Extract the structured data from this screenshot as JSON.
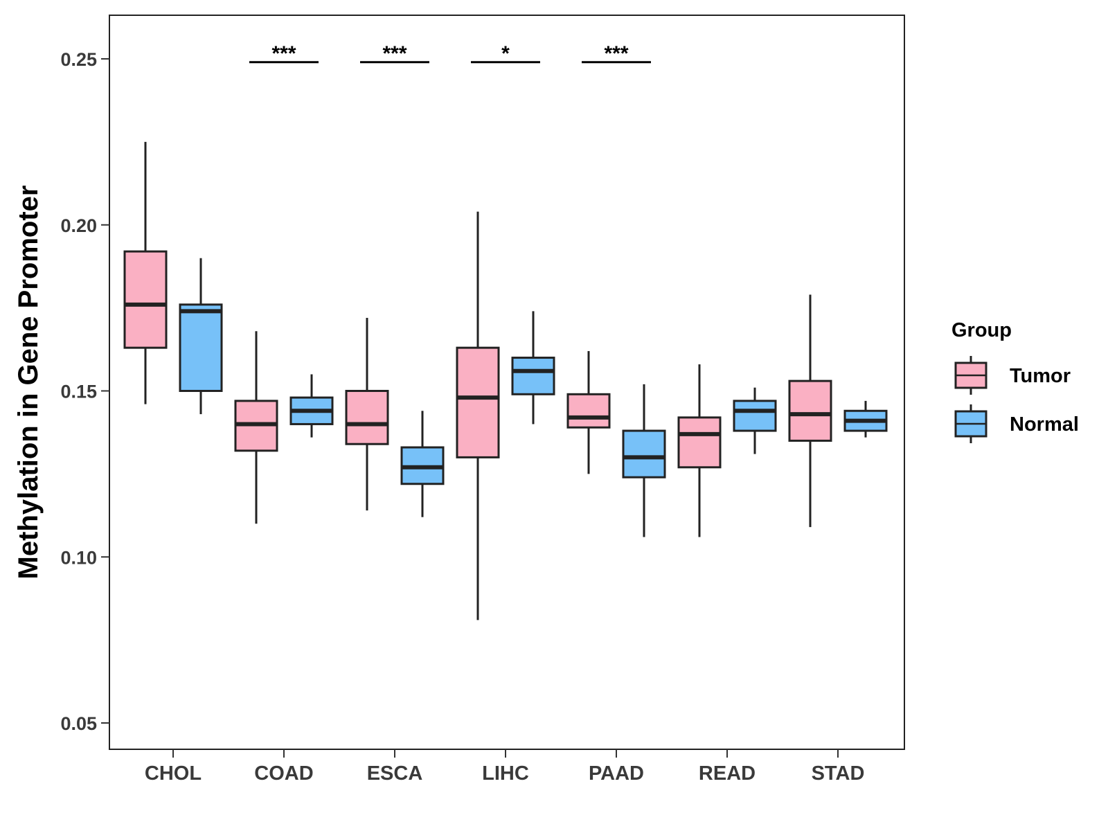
{
  "chart_data": {
    "type": "boxplot",
    "title": "",
    "xlabel": "",
    "ylabel": "Methylation in Gene Promoter",
    "ylim": [
      0.042,
      0.263
    ],
    "yticks": [
      0.05,
      0.1,
      0.15,
      0.2,
      0.25
    ],
    "ytick_labels": [
      "0.05",
      "0.10",
      "0.15",
      "0.20",
      "0.25"
    ],
    "categories": [
      "CHOL",
      "COAD",
      "ESCA",
      "LIHC",
      "PAAD",
      "READ",
      "STAD"
    ],
    "legend": {
      "title": "Group",
      "position": "right",
      "entries": [
        {
          "name": "Tumor",
          "color": "#FAB0C3"
        },
        {
          "name": "Normal",
          "color": "#77C1F8"
        }
      ]
    },
    "series": [
      {
        "name": "Tumor",
        "color": "#FAB0C3",
        "boxes": [
          {
            "category": "CHOL",
            "min": 0.146,
            "q1": 0.163,
            "median": 0.176,
            "q3": 0.192,
            "max": 0.225
          },
          {
            "category": "COAD",
            "min": 0.11,
            "q1": 0.132,
            "median": 0.14,
            "q3": 0.147,
            "max": 0.168
          },
          {
            "category": "ESCA",
            "min": 0.114,
            "q1": 0.134,
            "median": 0.14,
            "q3": 0.15,
            "max": 0.172
          },
          {
            "category": "LIHC",
            "min": 0.081,
            "q1": 0.13,
            "median": 0.148,
            "q3": 0.163,
            "max": 0.204
          },
          {
            "category": "PAAD",
            "min": 0.125,
            "q1": 0.139,
            "median": 0.142,
            "q3": 0.149,
            "max": 0.162
          },
          {
            "category": "READ",
            "min": 0.106,
            "q1": 0.127,
            "median": 0.137,
            "q3": 0.142,
            "max": 0.158
          },
          {
            "category": "STAD",
            "min": 0.109,
            "q1": 0.135,
            "median": 0.143,
            "q3": 0.153,
            "max": 0.179
          }
        ]
      },
      {
        "name": "Normal",
        "color": "#77C1F8",
        "boxes": [
          {
            "category": "CHOL",
            "min": 0.143,
            "q1": 0.15,
            "median": 0.174,
            "q3": 0.176,
            "max": 0.19
          },
          {
            "category": "COAD",
            "min": 0.136,
            "q1": 0.14,
            "median": 0.144,
            "q3": 0.148,
            "max": 0.155
          },
          {
            "category": "ESCA",
            "min": 0.112,
            "q1": 0.122,
            "median": 0.127,
            "q3": 0.133,
            "max": 0.144
          },
          {
            "category": "LIHC",
            "min": 0.14,
            "q1": 0.149,
            "median": 0.156,
            "q3": 0.16,
            "max": 0.174
          },
          {
            "category": "PAAD",
            "min": 0.106,
            "q1": 0.124,
            "median": 0.13,
            "q3": 0.138,
            "max": 0.152
          },
          {
            "category": "READ",
            "min": 0.131,
            "q1": 0.138,
            "median": 0.144,
            "q3": 0.147,
            "max": 0.151
          },
          {
            "category": "STAD",
            "min": 0.136,
            "q1": 0.138,
            "median": 0.141,
            "q3": 0.144,
            "max": 0.147
          }
        ]
      }
    ],
    "annotations": [
      {
        "category": "COAD",
        "label": "***",
        "y": 0.249
      },
      {
        "category": "ESCA",
        "label": "***",
        "y": 0.249
      },
      {
        "category": "LIHC",
        "label": "*",
        "y": 0.249
      },
      {
        "category": "PAAD",
        "label": "***",
        "y": 0.249
      }
    ]
  }
}
